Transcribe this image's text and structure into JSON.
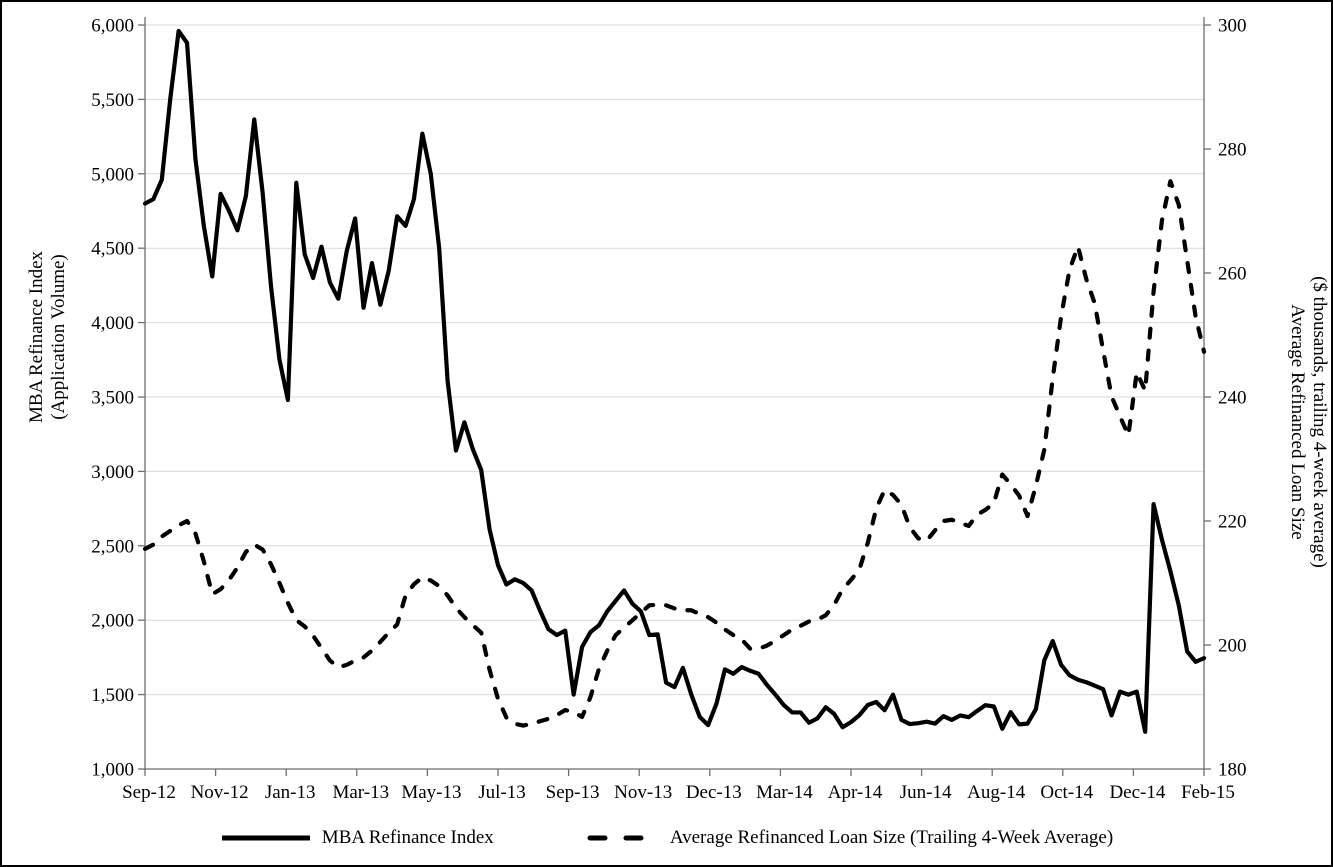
{
  "chart_data": {
    "type": "line",
    "title": "",
    "x_axis": {
      "labels": [
        "Sep-12",
        "Nov-12",
        "Jan-13",
        "Mar-13",
        "May-13",
        "Jul-13",
        "Sep-13",
        "Nov-13",
        "Dec-13",
        "Mar-14",
        "Apr-14",
        "Jun-14",
        "Aug-14",
        "Oct-14",
        "Dec-14",
        "Feb-15"
      ]
    },
    "left_axis": {
      "title_line1": "MBA Refinance Index",
      "title_line2": "(Application Volume)",
      "min": 1000,
      "max": 6000,
      "tick_step": 500,
      "tick_labels": [
        "1,000",
        "1,500",
        "2,000",
        "2,500",
        "3,000",
        "3,500",
        "4,000",
        "4,500",
        "5,000",
        "5,500",
        "6,000"
      ]
    },
    "right_axis": {
      "title_line1": "Average Refinanced Loan Size",
      "title_line2": "($ thousands, trailing 4-week average)",
      "min": 180,
      "max": 300,
      "tick_step": 20,
      "tick_labels": [
        "180",
        "200",
        "220",
        "240",
        "260",
        "280",
        "300"
      ]
    },
    "grid": {
      "horizontal": true,
      "color": "#d9d9d9"
    },
    "legend_position": "bottom",
    "series": [
      {
        "name": "MBA Refinance Index",
        "axis": "left",
        "style": "solid",
        "color": "#000000",
        "values": [
          4800,
          4830,
          4960,
          5500,
          5960,
          5880,
          5100,
          4650,
          4310,
          4865,
          4750,
          4620,
          4850,
          5365,
          4870,
          4240,
          3750,
          3480,
          4940,
          4460,
          4300,
          4510,
          4270,
          4160,
          4480,
          4700,
          4100,
          4400,
          4120,
          4350,
          4715,
          4650,
          4830,
          5270,
          5000,
          4500,
          3610,
          3140,
          3330,
          3150,
          3010,
          2610,
          2370,
          2240,
          2275,
          2250,
          2200,
          2065,
          1940,
          1900,
          1930,
          1500,
          1820,
          1920,
          1965,
          2060,
          2130,
          2200,
          2110,
          2060,
          1900,
          1905,
          1580,
          1550,
          1680,
          1500,
          1350,
          1295,
          1440,
          1670,
          1640,
          1685,
          1660,
          1640,
          1565,
          1500,
          1430,
          1380,
          1380,
          1311,
          1340,
          1415,
          1370,
          1281,
          1315,
          1362,
          1430,
          1450,
          1395,
          1500,
          1330,
          1302,
          1308,
          1318,
          1305,
          1355,
          1330,
          1360,
          1348,
          1390,
          1429,
          1420,
          1270,
          1382,
          1300,
          1305,
          1402,
          1731,
          1860,
          1700,
          1630,
          1600,
          1583,
          1560,
          1536,
          1360,
          1520,
          1500,
          1520,
          1250,
          2780,
          2540,
          2330,
          2100,
          1790,
          1720,
          1745
        ]
      },
      {
        "name": "Average Refinanced Loan Size (Trailing 4-Week Average)",
        "axis": "right",
        "style": "dashed",
        "color": "#000000",
        "values": [
          215.5,
          216.2,
          217.5,
          218.4,
          219.3,
          220.0,
          218.0,
          213.5,
          208.2,
          209.0,
          210.5,
          212.5,
          215.0,
          216.2,
          215.4,
          213.0,
          210.0,
          206.8,
          204.0,
          203.0,
          201.5,
          199.5,
          197.5,
          196.4,
          196.8,
          197.5,
          198.0,
          199.1,
          200.5,
          202.0,
          203.3,
          208.0,
          209.8,
          210.9,
          210.4,
          209.5,
          208.0,
          206.0,
          204.5,
          203.2,
          202.0,
          196.0,
          191.3,
          188.3,
          187.3,
          187.0,
          187.3,
          187.7,
          188.1,
          188.7,
          189.5,
          189.2,
          188.4,
          191.6,
          196.1,
          199.1,
          201.6,
          202.8,
          204.0,
          205.2,
          206.4,
          206.5,
          206.4,
          205.9,
          205.6,
          205.6,
          205.0,
          204.5,
          203.6,
          202.5,
          201.6,
          200.9,
          199.4,
          199.4,
          199.9,
          200.7,
          201.6,
          202.5,
          203.1,
          203.8,
          204.1,
          204.8,
          206.5,
          209.0,
          210.5,
          212.2,
          216.5,
          222.0,
          225.0,
          224.2,
          222.6,
          219.0,
          217.2,
          216.8,
          218.5,
          220.0,
          220.2,
          219.7,
          219.2,
          221.0,
          221.8,
          222.9,
          227.5,
          225.9,
          224.1,
          220.8,
          225.7,
          231.5,
          243.0,
          253.0,
          260.5,
          264.3,
          259.0,
          255.1,
          247.5,
          240.1,
          236.9,
          233.8,
          244.0,
          241.0,
          257.0,
          268.5,
          274.8,
          271.0,
          262.0,
          253.0,
          247.3
        ]
      }
    ]
  },
  "colors": {
    "background": "#ffffff",
    "border": "#000000",
    "grid": "#d9d9d9",
    "axis": "#6e6e6e",
    "line": "#000000"
  }
}
